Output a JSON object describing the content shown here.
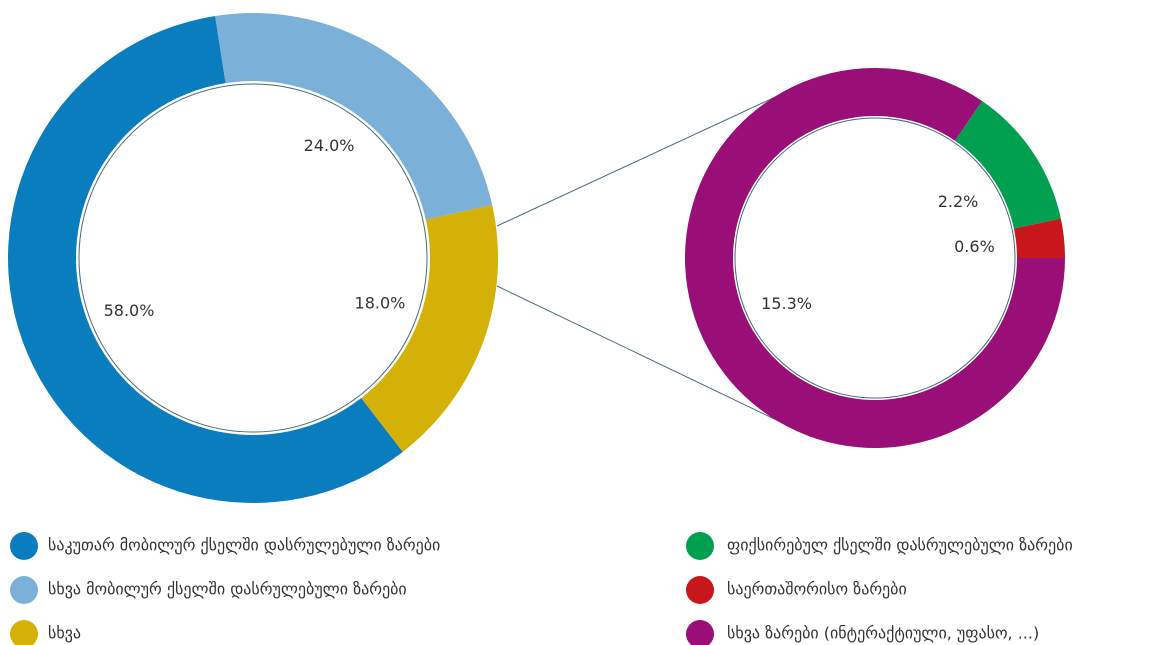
{
  "chart_data": [
    {
      "type": "donut",
      "categories": [
        "საკუთარ მობილურ ქსელში დასრულებული ზარები",
        "სხვა მობილურ ქსელში დასრულებული ზარები",
        "სხვა"
      ],
      "values": [
        58.0,
        24.0,
        18.0
      ],
      "value_labels": [
        "58.0%",
        "24.0%",
        "18.0%"
      ],
      "colors": [
        "#0a7dbf",
        "#7bb0d9",
        "#d4b106"
      ]
    },
    {
      "type": "donut",
      "categories": [
        "ფიქსირებულ ქსელში დასრულებული ზარები",
        "საერთაშორისო ზარები",
        "სხვა ზარები (ინტერაქტიული, უფასო, ...)"
      ],
      "values": [
        2.2,
        0.6,
        15.3
      ],
      "value_labels": [
        "2.2%",
        "0.6%",
        "15.3%"
      ],
      "colors": [
        "#00a050",
        "#c8161d",
        "#9a0e77"
      ]
    }
  ]
}
